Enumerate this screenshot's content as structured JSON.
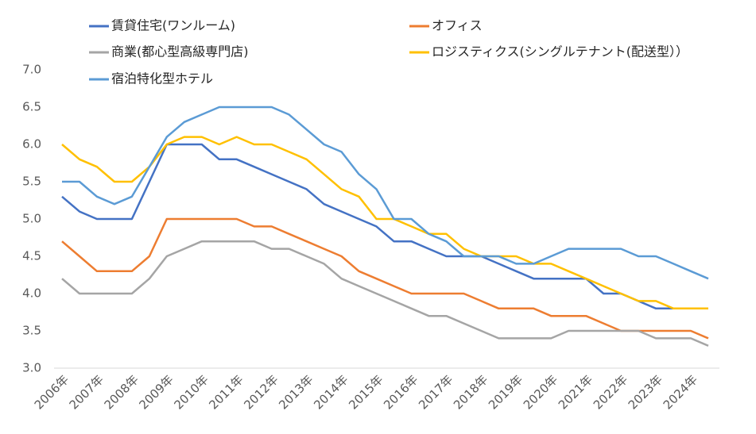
{
  "chart_data": {
    "type": "line",
    "categories": [
      "2006年",
      null,
      "2007年",
      null,
      "2008年",
      null,
      "2009年",
      null,
      "2010年",
      null,
      "2011年",
      null,
      "2012年",
      null,
      "2013年",
      null,
      "2014年",
      null,
      "2015年",
      null,
      "2016年",
      null,
      "2017年",
      null,
      "2018年",
      null,
      "2019年",
      null,
      "2020年",
      null,
      "2021年",
      null,
      "2022年",
      null,
      "2023年",
      null,
      "2024年",
      null
    ],
    "series": [
      {
        "name": "賃貸住宅(ワンルーム)",
        "color": "#4472c4",
        "values": [
          5.3,
          5.1,
          5.0,
          5.0,
          5.0,
          5.5,
          6.0,
          6.0,
          6.0,
          5.8,
          5.8,
          5.7,
          5.6,
          5.5,
          5.4,
          5.2,
          5.1,
          5.0,
          4.9,
          4.7,
          4.7,
          4.6,
          4.5,
          4.5,
          4.5,
          4.4,
          4.3,
          4.2,
          4.2,
          4.2,
          4.2,
          4.0,
          4.0,
          3.9,
          3.8,
          3.8,
          3.8,
          3.8
        ]
      },
      {
        "name": "オフィス",
        "color": "#ed7d31",
        "values": [
          4.7,
          4.5,
          4.3,
          4.3,
          4.3,
          4.5,
          5.0,
          5.0,
          5.0,
          5.0,
          5.0,
          4.9,
          4.9,
          4.8,
          4.7,
          4.6,
          4.5,
          4.3,
          4.2,
          4.1,
          4.0,
          4.0,
          4.0,
          4.0,
          3.9,
          3.8,
          3.8,
          3.8,
          3.7,
          3.7,
          3.7,
          3.6,
          3.5,
          3.5,
          3.5,
          3.5,
          3.5,
          3.4
        ]
      },
      {
        "name": "商業(都心型高級専門店)",
        "color": "#a5a5a5",
        "values": [
          4.2,
          4.0,
          4.0,
          4.0,
          4.0,
          4.2,
          4.5,
          4.6,
          4.7,
          4.7,
          4.7,
          4.7,
          4.6,
          4.6,
          4.5,
          4.4,
          4.2,
          4.1,
          4.0,
          3.9,
          3.8,
          3.7,
          3.7,
          3.6,
          3.5,
          3.4,
          3.4,
          3.4,
          3.4,
          3.5,
          3.5,
          3.5,
          3.5,
          3.5,
          3.4,
          3.4,
          3.4,
          3.3
        ]
      },
      {
        "name": "ロジスティクス(シングルテナント(配送型））",
        "color": "#ffc000",
        "values": [
          6.0,
          5.8,
          5.7,
          5.5,
          5.5,
          5.7,
          6.0,
          6.1,
          6.1,
          6.0,
          6.1,
          6.0,
          6.0,
          5.9,
          5.8,
          5.6,
          5.4,
          5.3,
          5.0,
          5.0,
          4.9,
          4.8,
          4.8,
          4.6,
          4.5,
          4.5,
          4.5,
          4.4,
          4.4,
          4.3,
          4.2,
          4.1,
          4.0,
          3.9,
          3.9,
          3.8,
          3.8,
          3.8
        ]
      },
      {
        "name": "宿泊特化型ホテル",
        "color": "#5b9bd5",
        "values": [
          5.5,
          5.5,
          5.3,
          5.2,
          5.3,
          5.7,
          6.1,
          6.3,
          6.4,
          6.5,
          6.5,
          6.5,
          6.5,
          6.4,
          6.2,
          6.0,
          5.9,
          5.6,
          5.4,
          5.0,
          5.0,
          4.8,
          4.7,
          4.5,
          4.5,
          4.5,
          4.4,
          4.4,
          4.5,
          4.6,
          4.6,
          4.6,
          4.6,
          4.5,
          4.5,
          4.4,
          4.3,
          4.2
        ]
      }
    ],
    "ylim": [
      3.0,
      7.0
    ],
    "yticks": [
      {
        "value": 3,
        "label": "3.0"
      },
      3.5,
      {
        "value": 4,
        "label": "4.0"
      },
      4.5,
      {
        "value": 5,
        "label": "5.0"
      },
      5.5,
      {
        "value": 6,
        "label": "6.0"
      },
      6.5,
      {
        "value": 7,
        "label": "7.0"
      }
    ],
    "grid": false
  }
}
